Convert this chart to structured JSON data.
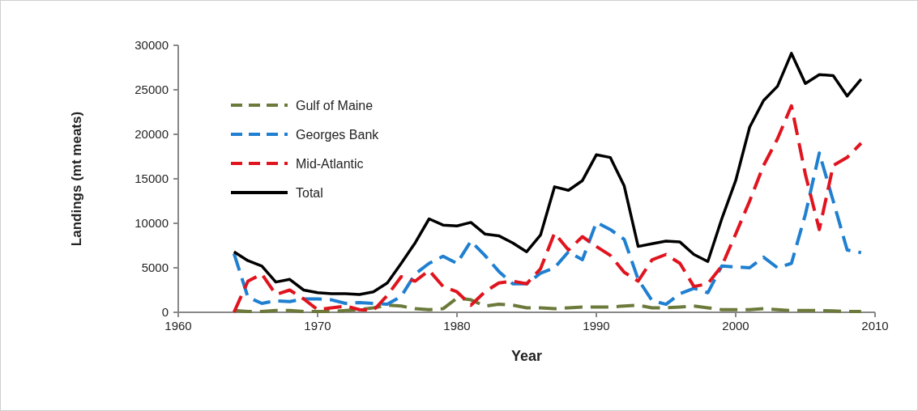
{
  "chart_data": {
    "type": "line",
    "xlabel": "Year",
    "ylabel": "Landings (mt meats)",
    "x": [
      1964,
      1965,
      1966,
      1967,
      1968,
      1969,
      1970,
      1971,
      1972,
      1973,
      1974,
      1975,
      1976,
      1977,
      1978,
      1979,
      1980,
      1981,
      1982,
      1983,
      1984,
      1985,
      1986,
      1987,
      1988,
      1989,
      1990,
      1991,
      1992,
      1993,
      1994,
      1995,
      1996,
      1997,
      1998,
      1999,
      2000,
      2001,
      2002,
      2003,
      2004,
      2005,
      2006,
      2007,
      2008,
      2009
    ],
    "series": [
      {
        "name": "Gulf of Maine",
        "color": "#6b7a3a",
        "line_style": "dashed",
        "values": [
          200,
          100,
          100,
          200,
          200,
          100,
          100,
          100,
          200,
          300,
          500,
          800,
          700,
          400,
          300,
          400,
          1600,
          1400,
          700,
          900,
          800,
          500,
          500,
          400,
          500,
          600,
          600,
          600,
          700,
          800,
          500,
          500,
          600,
          700,
          500,
          300,
          300,
          300,
          400,
          300,
          200,
          200,
          200,
          150,
          100,
          100
        ]
      },
      {
        "name": "Georges Bank",
        "color": "#1f7fd0",
        "line_style": "dashed",
        "values": [
          6600,
          1700,
          1000,
          1300,
          1200,
          1500,
          1500,
          1400,
          1000,
          1100,
          1000,
          900,
          1800,
          4300,
          5500,
          6300,
          5500,
          8000,
          6400,
          4600,
          3200,
          3200,
          4400,
          5000,
          6800,
          5900,
          10100,
          9300,
          8200,
          3700,
          1300,
          900,
          2100,
          2700,
          2200,
          5200,
          5100,
          5000,
          6200,
          5000,
          5500,
          11000,
          17900,
          12500,
          7000,
          6700
        ]
      },
      {
        "name": "Mid-Atlantic",
        "color": "#e0141e",
        "line_style": "dashed",
        "values": [
          0,
          3500,
          4300,
          2000,
          2500,
          1500,
          300,
          500,
          700,
          300,
          200,
          1900,
          4000,
          3500,
          4700,
          2900,
          2300,
          800,
          2300,
          3300,
          3500,
          3200,
          4900,
          8900,
          7000,
          8500,
          7400,
          6400,
          4500,
          3500,
          5900,
          6500,
          5500,
          2900,
          3200,
          5200,
          8800,
          12500,
          16500,
          19500,
          23200,
          15500,
          9300,
          16500,
          17400,
          19000
        ]
      },
      {
        "name": "Total",
        "color": "#000000",
        "line_style": "solid",
        "values": [
          6800,
          5800,
          5200,
          3400,
          3700,
          2500,
          2200,
          2100,
          2100,
          2000,
          2300,
          3300,
          5500,
          7800,
          10500,
          9800,
          9700,
          10100,
          8800,
          8600,
          7800,
          6800,
          8700,
          14100,
          13700,
          14800,
          17700,
          17400,
          14200,
          7400,
          7700,
          8000,
          7900,
          6500,
          5700,
          10500,
          14800,
          20800,
          23800,
          25400,
          29100,
          25700,
          26700,
          26600,
          24300,
          26200
        ]
      }
    ],
    "xlim": [
      1960,
      2010
    ],
    "xticks": [
      1960,
      1970,
      1980,
      1990,
      2000,
      2010
    ],
    "ylim": [
      0,
      30000
    ],
    "yticks": [
      0,
      5000,
      10000,
      15000,
      20000,
      25000,
      30000
    ],
    "grid": false,
    "legend": "top left",
    "marker": "none"
  }
}
